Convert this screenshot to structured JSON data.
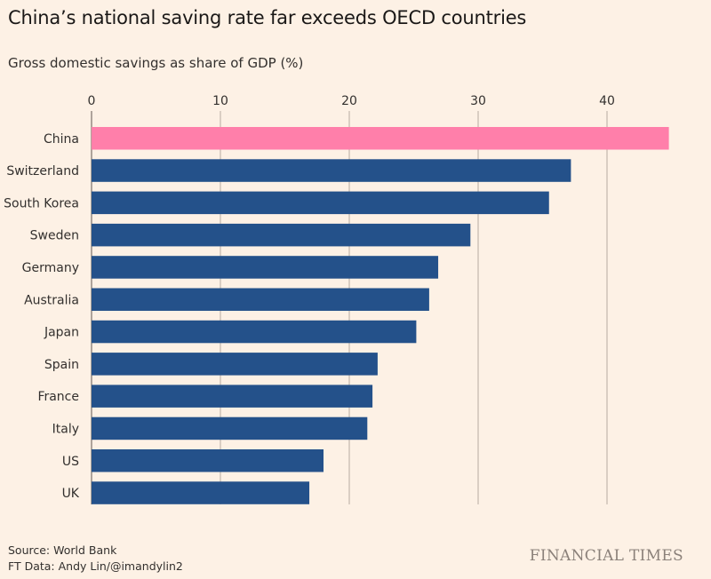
{
  "title": "China’s national saving rate far exceeds OECD countries",
  "subtitle": "Gross domestic savings as share of GDP (%)",
  "source": "Source: World Bank",
  "credit": "FT Data: Andy Lin/@imandylin2",
  "brand": "FINANCIAL TIMES",
  "colors": {
    "highlight": "#ff7faa",
    "bar": "#24518a",
    "grid": "#b8aca1",
    "background": "#fdf1e5"
  },
  "chart_data": {
    "type": "bar",
    "orientation": "horizontal",
    "categories": [
      "China",
      "Switzerland",
      "South Korea",
      "Sweden",
      "Germany",
      "Australia",
      "Japan",
      "Spain",
      "France",
      "Italy",
      "US",
      "UK"
    ],
    "values": [
      44.8,
      37.2,
      35.5,
      29.4,
      26.9,
      26.2,
      25.2,
      22.2,
      21.8,
      21.4,
      18.0,
      16.9
    ],
    "highlight": "China",
    "xlim": [
      0,
      45
    ],
    "xticks": [
      0,
      10,
      20,
      30,
      40
    ],
    "axis_position": "top",
    "grid": true
  }
}
